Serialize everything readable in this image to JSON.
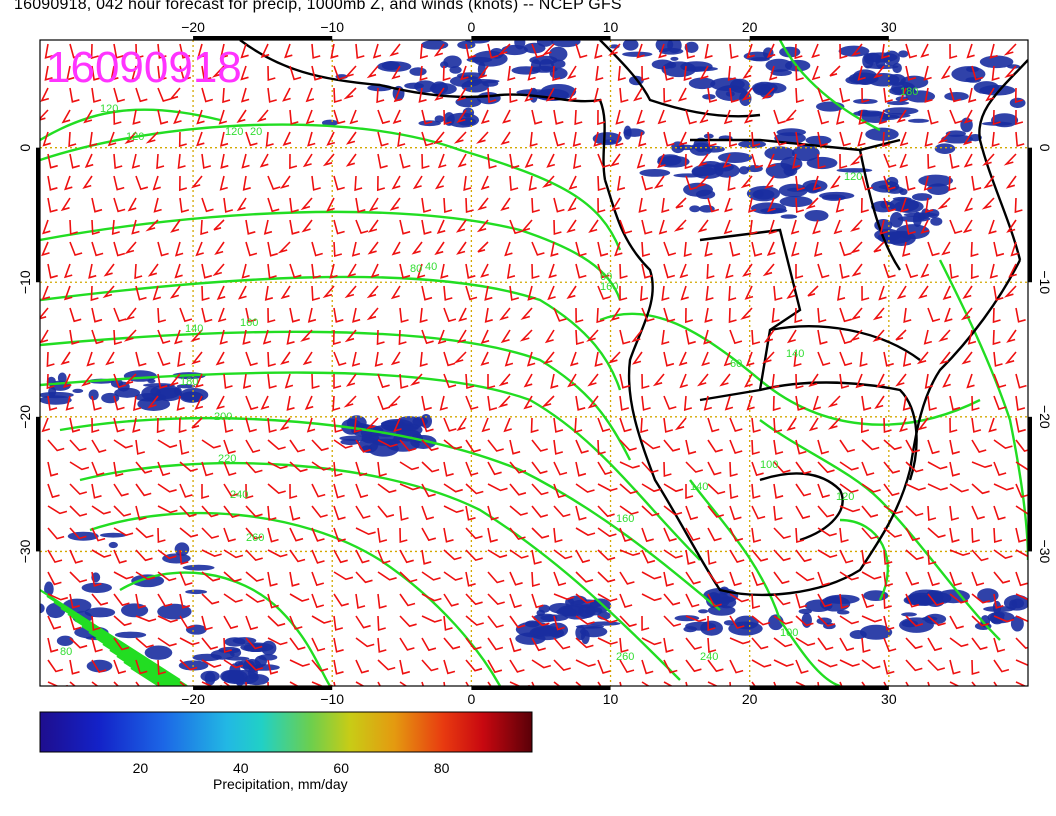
{
  "title": "16090918, 042 hour forecast for precip, 1000mb Z, and winds (knots) -- NCEP GFS",
  "stamp": "16090918",
  "map": {
    "lon_range": [
      -31,
      40
    ],
    "lat_range": [
      -40,
      8
    ],
    "lon_ticks": [
      {
        "value": -20,
        "label": "−20"
      },
      {
        "value": -10,
        "label": "−10"
      },
      {
        "value": 0,
        "label": "0"
      },
      {
        "value": 10,
        "label": "10"
      },
      {
        "value": 20,
        "label": "20"
      },
      {
        "value": 30,
        "label": "30"
      }
    ],
    "lat_ticks": [
      {
        "value": 0,
        "label": "0"
      },
      {
        "value": -10,
        "label": "−10"
      },
      {
        "value": -20,
        "label": "−20"
      },
      {
        "value": -30,
        "label": "−30"
      }
    ],
    "contour_color": "#22dd22",
    "barb_color": "#ee1111",
    "grid_color": "#d4a800",
    "precip_color": "#1a2ea0",
    "contour_labels": [
      "120",
      "120",
      "140",
      "160",
      "180",
      "200",
      "220",
      "240",
      "260",
      "160",
      "120",
      "80",
      "60",
      "100",
      "120",
      "140",
      "160",
      "240",
      "260",
      "40",
      "20",
      "80",
      "60",
      "120",
      "140",
      "100",
      "180"
    ]
  },
  "colorbar": {
    "min": 0,
    "max": 98,
    "ticks": [
      {
        "value": 20,
        "label": "20"
      },
      {
        "value": 40,
        "label": "40"
      },
      {
        "value": 60,
        "label": "60"
      },
      {
        "value": 80,
        "label": "80"
      }
    ],
    "title": "Precipitation, mm/day"
  }
}
